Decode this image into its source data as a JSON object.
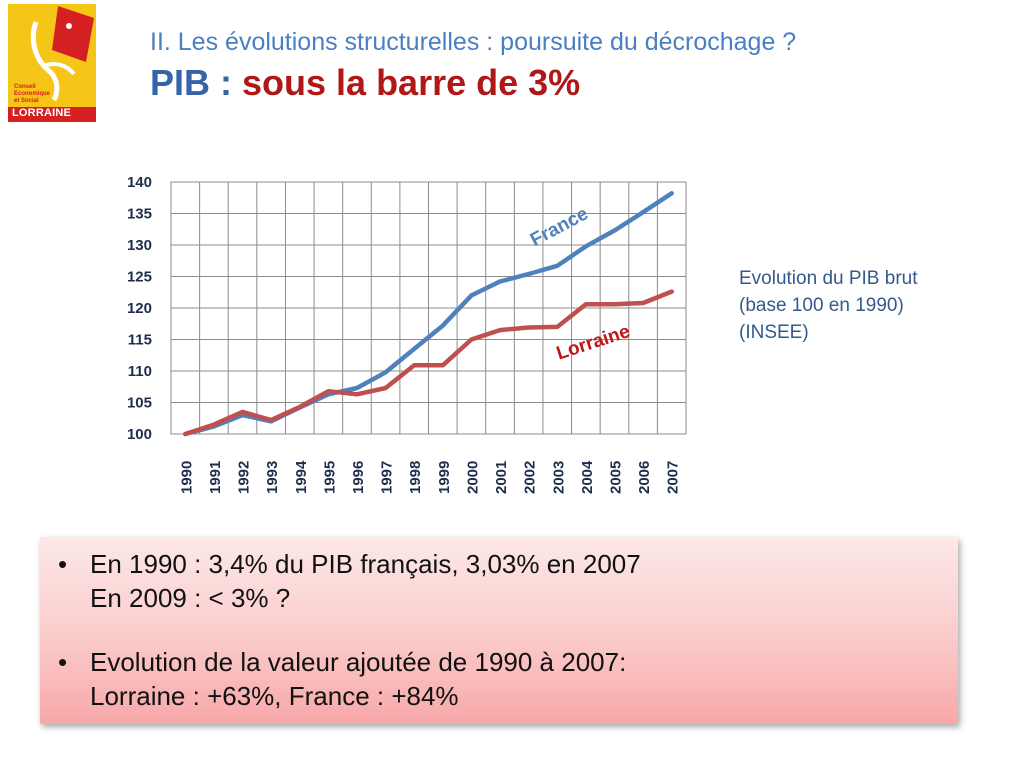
{
  "header": {
    "subtitle": "II. Les évolutions structurelles : poursuite du décrochage ?",
    "title_prefix": "PIB : ",
    "title_highlight": "sous la barre de 3%"
  },
  "logo": {
    "line1": "Conseil",
    "line2": "Economique",
    "line3": "et Social",
    "line4": "LORRAINE",
    "bg_color": "#f5c518",
    "accent_color": "#d42020"
  },
  "side_note": {
    "line1": "Evolution du PIB brut",
    "line2": "(base 100 en 1990)",
    "line3": "(INSEE)"
  },
  "bullets": [
    {
      "line1": "En 1990 : 3,4% du PIB français, 3,03% en 2007",
      "line2": "En 2009 : < 3% ?"
    },
    {
      "line1": "Evolution de la valeur ajoutée de 1990 à 2007:",
      "line2": "Lorraine : +63%, France : +84%"
    }
  ],
  "chart_data": {
    "type": "line",
    "title": "",
    "xlabel": "",
    "ylabel": "",
    "ylim": [
      100,
      140
    ],
    "yticks": [
      100,
      105,
      110,
      115,
      120,
      125,
      130,
      135,
      140
    ],
    "grid": true,
    "categories": [
      "1990",
      "1991",
      "1992",
      "1993",
      "1994",
      "1995",
      "1996",
      "1997",
      "1998",
      "1999",
      "2000",
      "2001",
      "2002",
      "2003",
      "2004",
      "2005",
      "2006",
      "2007"
    ],
    "series": [
      {
        "name": "France",
        "color": "#4f81bd",
        "values": [
          100,
          101.2,
          103.0,
          102.0,
          104.2,
          106.3,
          107.3,
          109.8,
          113.5,
          117.2,
          122.0,
          124.2,
          125.4,
          126.7,
          129.8,
          132.3,
          135.2,
          138.2
        ]
      },
      {
        "name": "Lorraine",
        "color": "#c0504d",
        "values": [
          100,
          101.5,
          103.5,
          102.2,
          104.3,
          106.8,
          106.3,
          107.3,
          110.9,
          110.9,
          115.0,
          116.5,
          116.9,
          117.0,
          120.6,
          120.6,
          120.8,
          122.6
        ]
      }
    ]
  }
}
